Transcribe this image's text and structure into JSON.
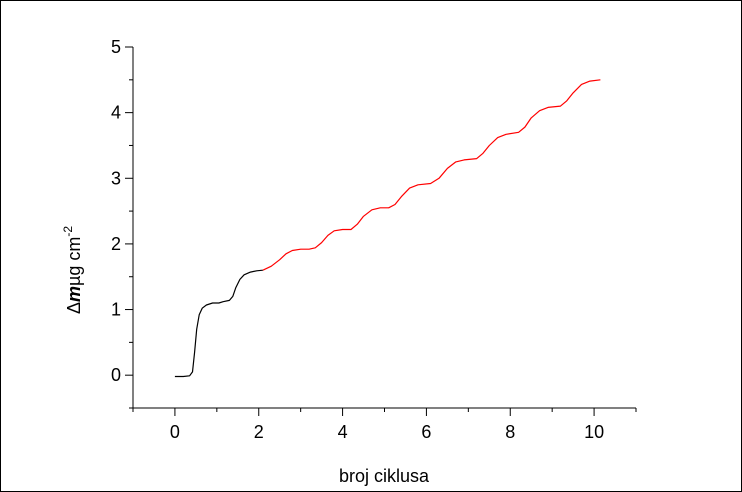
{
  "chart_data": {
    "type": "line",
    "xlabel": "broj ciklusa",
    "ylabel": {
      "delta": "Δ",
      "m": "m",
      "unit": "µg cm",
      "exponent": "-2"
    },
    "xlim": [
      -1,
      11
    ],
    "ylim": [
      -0.5,
      5
    ],
    "xticks": [
      0,
      2,
      4,
      6,
      8,
      10
    ],
    "yticks": [
      0,
      1,
      2,
      3,
      4,
      5
    ],
    "grid": false,
    "series": [
      {
        "color": "#000000",
        "points": [
          [
            0.0,
            -0.02
          ],
          [
            0.2,
            -0.02
          ],
          [
            0.35,
            -0.01
          ],
          [
            0.42,
            0.05
          ],
          [
            0.47,
            0.35
          ],
          [
            0.52,
            0.7
          ],
          [
            0.58,
            0.92
          ],
          [
            0.65,
            1.02
          ],
          [
            0.75,
            1.07
          ],
          [
            0.9,
            1.1
          ],
          [
            1.05,
            1.1
          ],
          [
            1.15,
            1.12
          ],
          [
            1.3,
            1.14
          ],
          [
            1.38,
            1.2
          ],
          [
            1.45,
            1.33
          ],
          [
            1.55,
            1.46
          ],
          [
            1.65,
            1.53
          ],
          [
            1.8,
            1.57
          ],
          [
            1.95,
            1.59
          ],
          [
            2.1,
            1.6
          ]
        ]
      },
      {
        "color": "#ff0000",
        "points": [
          [
            2.1,
            1.6
          ],
          [
            2.3,
            1.66
          ],
          [
            2.5,
            1.76
          ],
          [
            2.65,
            1.85
          ],
          [
            2.8,
            1.9
          ],
          [
            3.0,
            1.92
          ],
          [
            3.2,
            1.92
          ],
          [
            3.35,
            1.94
          ],
          [
            3.5,
            2.02
          ],
          [
            3.65,
            2.13
          ],
          [
            3.8,
            2.2
          ],
          [
            4.0,
            2.22
          ],
          [
            4.2,
            2.22
          ],
          [
            4.35,
            2.3
          ],
          [
            4.5,
            2.42
          ],
          [
            4.7,
            2.52
          ],
          [
            4.9,
            2.55
          ],
          [
            5.1,
            2.55
          ],
          [
            5.25,
            2.6
          ],
          [
            5.4,
            2.72
          ],
          [
            5.6,
            2.85
          ],
          [
            5.8,
            2.9
          ],
          [
            6.1,
            2.92
          ],
          [
            6.3,
            3.0
          ],
          [
            6.5,
            3.15
          ],
          [
            6.7,
            3.25
          ],
          [
            6.9,
            3.28
          ],
          [
            7.2,
            3.3
          ],
          [
            7.35,
            3.38
          ],
          [
            7.5,
            3.5
          ],
          [
            7.7,
            3.62
          ],
          [
            7.9,
            3.67
          ],
          [
            8.2,
            3.7
          ],
          [
            8.35,
            3.78
          ],
          [
            8.5,
            3.92
          ],
          [
            8.7,
            4.03
          ],
          [
            8.9,
            4.08
          ],
          [
            9.2,
            4.1
          ],
          [
            9.35,
            4.18
          ],
          [
            9.5,
            4.3
          ],
          [
            9.7,
            4.43
          ],
          [
            9.9,
            4.48
          ],
          [
            10.15,
            4.5
          ]
        ]
      }
    ]
  }
}
